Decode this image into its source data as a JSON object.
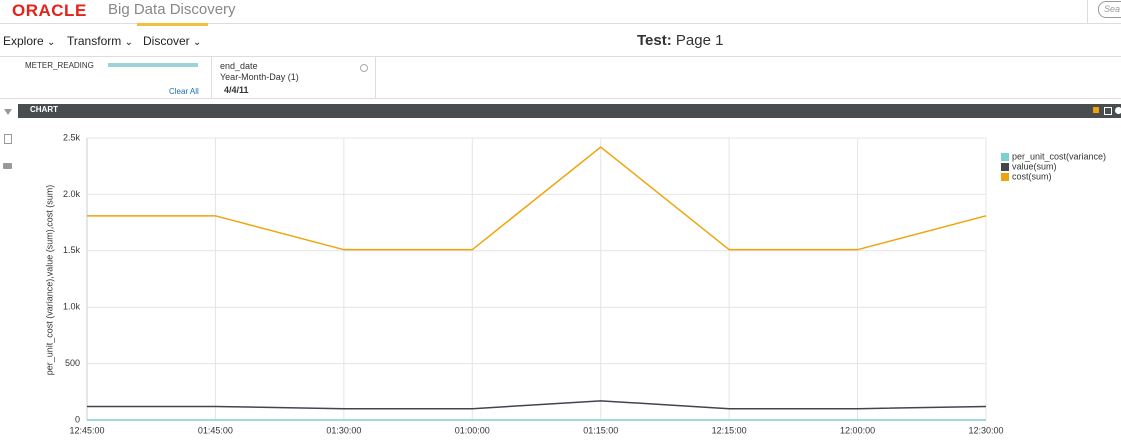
{
  "header": {
    "logo": "ORACLE",
    "product": "Big Data Discovery",
    "search": "Sea"
  },
  "nav": {
    "items": [
      "Explore",
      "Transform",
      "Discover"
    ],
    "page_prefix": "Test:",
    "page_name": "Page 1"
  },
  "filters": {
    "attribute": "METER_READING",
    "clear": "Clear All",
    "refinement": {
      "name": "end_date",
      "hierarchy": "Year-Month-Day (1)",
      "value": "4/4/11"
    }
  },
  "panel": {
    "title": "CHART"
  },
  "chart_data": {
    "type": "line",
    "ylabel": "per_unit_cost (variance),value (sum),cost (sum)",
    "categories": [
      "12:45:00",
      "01:45:00",
      "01:30:00",
      "01:00:00",
      "01:15:00",
      "12:15:00",
      "12:00:00",
      "12:30:00"
    ],
    "series": [
      {
        "name": "per_unit_cost(variance)",
        "color": "#7fcfd0",
        "values": [
          0,
          0,
          0,
          0,
          0,
          0,
          0,
          0
        ]
      },
      {
        "name": "value(sum)",
        "color": "#44444f",
        "values": [
          120,
          120,
          100,
          100,
          170,
          100,
          100,
          120
        ]
      },
      {
        "name": "cost(sum)",
        "color": "#f0a30a",
        "values": [
          1810,
          1810,
          1510,
          1510,
          2420,
          1510,
          1510,
          1810
        ]
      }
    ],
    "ylim": [
      0,
      2500
    ],
    "yticks": [
      0,
      500,
      {
        "value": 1000,
        "label": "1.0k"
      },
      {
        "value": 1500,
        "label": "1.5k"
      },
      {
        "value": 2000,
        "label": "2.0k"
      },
      {
        "value": 2500,
        "label": "2.5k"
      }
    ],
    "grid": true
  }
}
